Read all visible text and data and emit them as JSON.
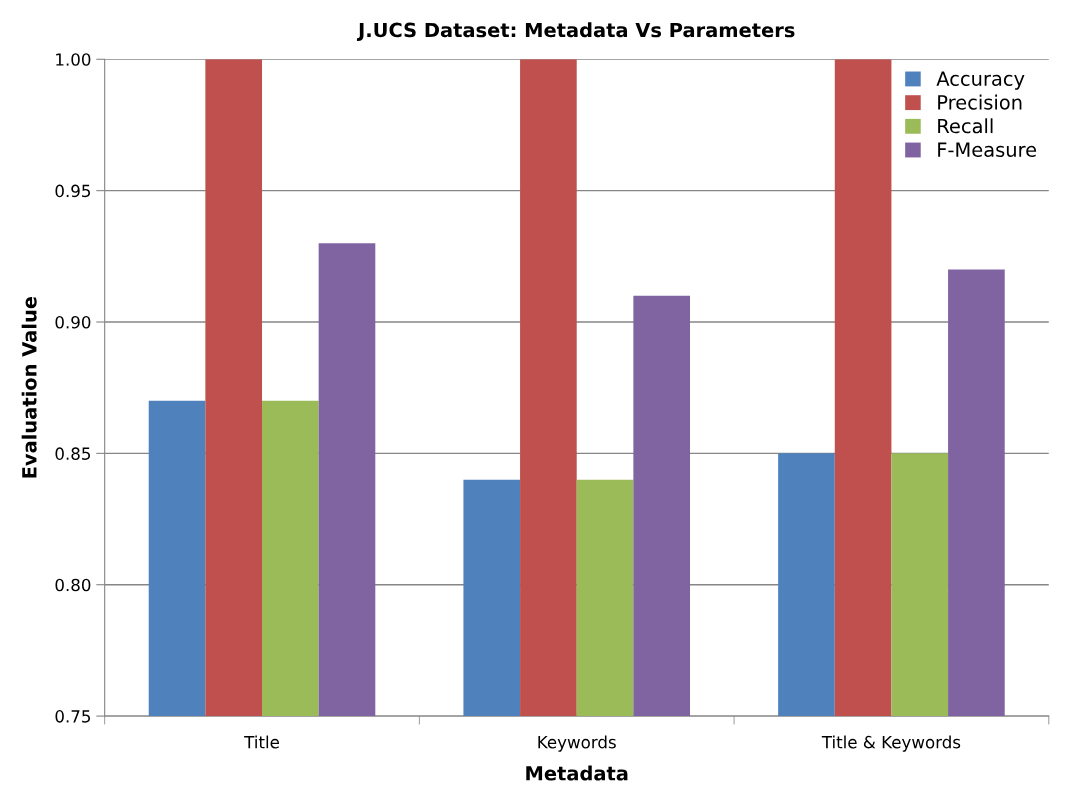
{
  "chart_data": {
    "type": "bar",
    "title": "J.UCS Dataset: Metadata Vs Parameters",
    "xlabel": "Metadata",
    "ylabel": "Evaluation Value",
    "categories": [
      "Title",
      "Keywords",
      "Title & Keywords"
    ],
    "series": [
      {
        "name": "Accuracy",
        "color": "#4f81bd",
        "values": [
          0.87,
          0.84,
          0.85
        ]
      },
      {
        "name": "Precision",
        "color": "#c0504d",
        "values": [
          1.0,
          1.0,
          1.0
        ]
      },
      {
        "name": "Recall",
        "color": "#9bbb59",
        "values": [
          0.87,
          0.84,
          0.85
        ]
      },
      {
        "name": "F-Measure",
        "color": "#8064a2",
        "values": [
          0.93,
          0.91,
          0.92
        ]
      }
    ],
    "ylim": [
      0.75,
      1.0
    ],
    "yticks": [
      {
        "value": 0.75,
        "label": "0.75"
      },
      {
        "value": 0.8,
        "label": "0.80"
      },
      {
        "value": 0.85,
        "label": "0.85"
      },
      {
        "value": 0.9,
        "label": "0.90"
      },
      {
        "value": 0.95,
        "label": "0.95"
      },
      {
        "value": 1.0,
        "label": "1.00"
      }
    ],
    "grid": "y",
    "legend": "top right"
  }
}
